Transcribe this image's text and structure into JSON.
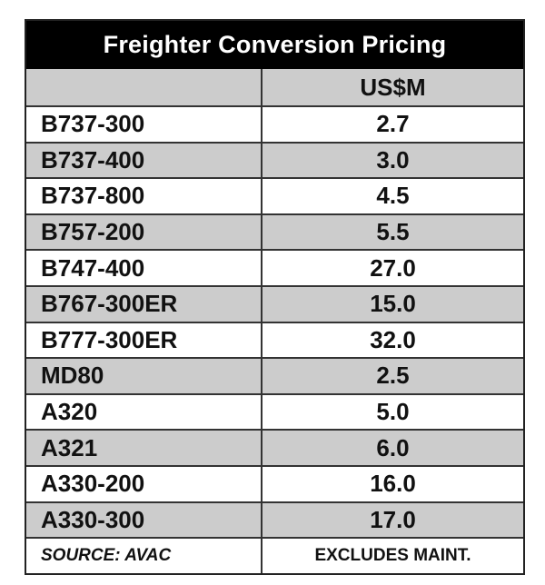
{
  "chart_data": {
    "type": "table",
    "title": "Freighter Conversion Pricing",
    "columns": [
      "",
      "US$M"
    ],
    "rows": [
      {
        "label": "B737-300",
        "value": "2.7"
      },
      {
        "label": "B737-400",
        "value": "3.0"
      },
      {
        "label": "B737-800",
        "value": "4.5"
      },
      {
        "label": "B757-200",
        "value": "5.5"
      },
      {
        "label": "B747-400",
        "value": "27.0"
      },
      {
        "label": "B767-300ER",
        "value": "15.0"
      },
      {
        "label": "B777-300ER",
        "value": "32.0"
      },
      {
        "label": "MD80",
        "value": "2.5"
      },
      {
        "label": "A320",
        "value": "5.0"
      },
      {
        "label": "A321",
        "value": "6.0"
      },
      {
        "label": "A330-200",
        "value": "16.0"
      },
      {
        "label": "A330-300",
        "value": "17.0"
      }
    ],
    "footer": {
      "source": "SOURCE: AVAC",
      "note": "EXCLUDES MAINT."
    },
    "colors": {
      "title_bg": "#000000",
      "title_text": "#ffffff",
      "stripe": "#cccccc",
      "row": "#ffffff"
    }
  }
}
